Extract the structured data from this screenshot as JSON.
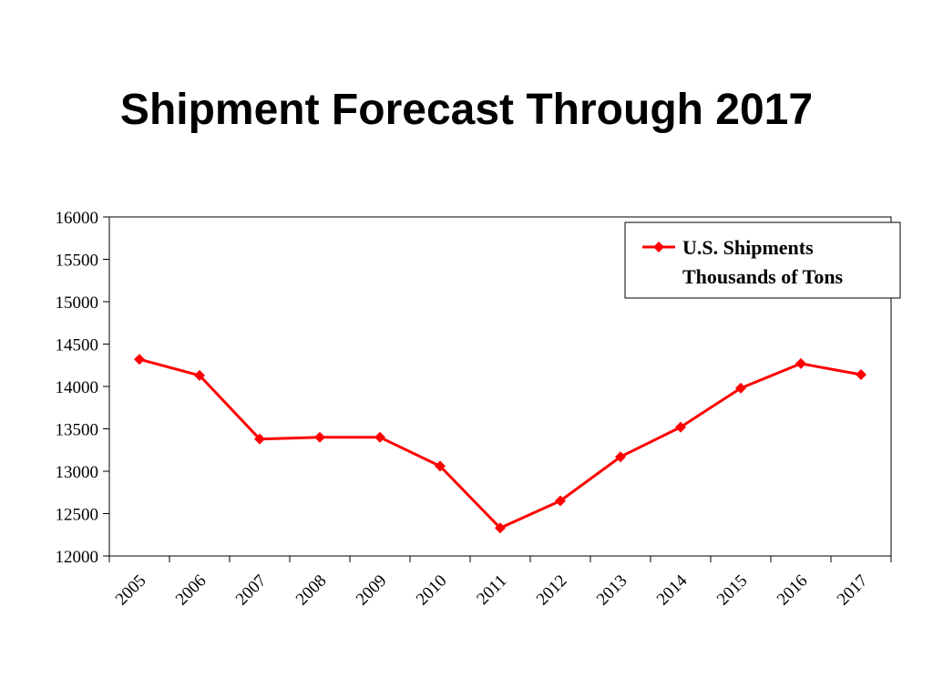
{
  "chart_data": {
    "type": "line",
    "title": "Shipment Forecast Through 2017",
    "categories": [
      "2005",
      "2006",
      "2007",
      "2008",
      "2009",
      "2010",
      "2011",
      "2012",
      "2013",
      "2014",
      "2015",
      "2016",
      "2017"
    ],
    "series": [
      {
        "name": "U.S. Shipments Thousands of Tons",
        "legend_lines": [
          "U.S. Shipments",
          "Thousands of Tons"
        ],
        "color": "#ff0000",
        "marker": "diamond",
        "values": [
          14320,
          14130,
          13380,
          13400,
          13400,
          13060,
          12330,
          12650,
          13170,
          13520,
          13980,
          14270,
          14140
        ]
      }
    ],
    "ylim": [
      12000,
      16000
    ],
    "ytick_step": 500,
    "yticks": [
      "12000",
      "12500",
      "13000",
      "13500",
      "14000",
      "14500",
      "15000",
      "15500",
      "16000"
    ],
    "grid": false,
    "legend_position": "top-right",
    "xlabel": "",
    "ylabel": ""
  }
}
